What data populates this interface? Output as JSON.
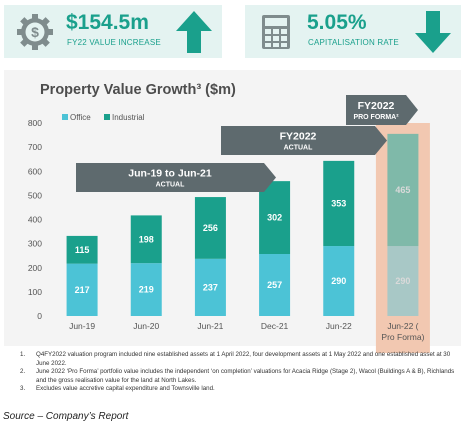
{
  "kpis": [
    {
      "icon": "dollar-gear-icon",
      "value": "$154.5m",
      "label": "FY22 VALUE INCREASE",
      "direction": "up"
    },
    {
      "icon": "calculator-icon",
      "value": "5.05%",
      "label": "CAPITALISATION RATE",
      "direction": "down"
    }
  ],
  "colors": {
    "teal": "#1aa08c",
    "kpi_bg": "#e4f3f1",
    "office": "#4cc3d6",
    "industrial": "#1aa08c",
    "proforma_bg": "#f2c8b1",
    "banner": "#5e6a6e"
  },
  "banners": {
    "b1": {
      "line1": "Jun-19 to Jun-21",
      "line2": "ACTUAL"
    },
    "b2": {
      "line1": "FY2022",
      "line2": "ACTUAL"
    },
    "b3": {
      "line1": "FY2022",
      "line2": "PRO FORMA²"
    }
  },
  "chart_data": {
    "type": "bar",
    "stacked": true,
    "title": "Property Value Growth³ ($m)",
    "categories": [
      "Jun-19",
      "Jun-20",
      "Jun-21",
      "Dec-21",
      "Jun-22",
      "Jun-22 (Pro Forma)"
    ],
    "series": [
      {
        "name": "Office",
        "values": [
          217,
          219,
          237,
          257,
          290,
          290
        ]
      },
      {
        "name": "Industrial",
        "values": [
          115,
          198,
          256,
          302,
          353,
          465
        ]
      }
    ],
    "ylim": [
      0,
      800
    ],
    "yticks": [
      0,
      100,
      200,
      300,
      400,
      500,
      600,
      700,
      800
    ],
    "legend": "top-left",
    "grid": false
  },
  "footnotes": [
    {
      "num": "1.",
      "text": "Q4FY2022 valuation program included nine established assets at 1 April 2022, four development assets at 1 May 2022 and one established asset at 30 June 2022."
    },
    {
      "num": "2.",
      "text": "June 2022 ‘Pro Forma’ portfolio value includes the independent ‘on completion’ valuations for Acacia Ridge (Stage 2), Wacol (Buildings A & B), Richlands and the gross realisation value for the land at North Lakes."
    },
    {
      "num": "3.",
      "text": "Excludes value accretive capital expenditure and Townsville land."
    }
  ],
  "source": "Source – Company’s Report"
}
